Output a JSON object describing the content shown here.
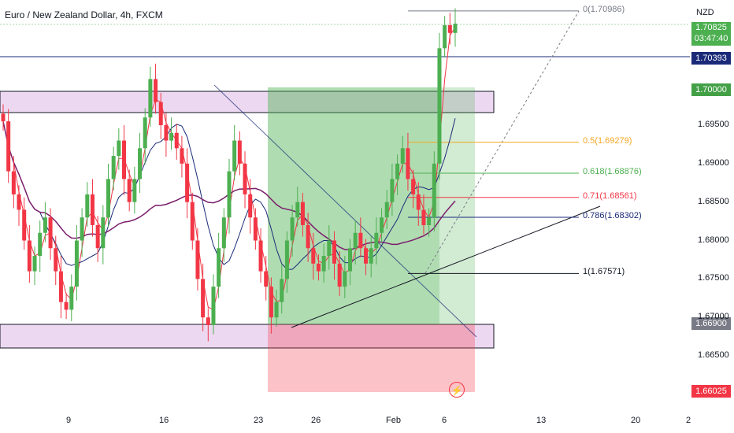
{
  "header": {
    "title": "Euro / New Zealand Dollar, 4h, FXCM",
    "currency": "NZD"
  },
  "price_tags": {
    "last_price": "1.70825",
    "countdown": "03:47:40",
    "level_line": "1.70393",
    "target": "1.70000",
    "entry": "1.66900",
    "stop": "1.66025"
  },
  "chart_data": {
    "type": "candlestick",
    "title": "Euro / New Zealand Dollar, 4h, FXCM",
    "y_axis_ticks": [
      "1.69500",
      "1.69000",
      "1.68500",
      "1.68000",
      "1.67500",
      "1.67000",
      "1.66500"
    ],
    "x_axis_ticks": [
      "9",
      "16",
      "23",
      "26",
      "Feb",
      "6",
      "13",
      "20",
      "2"
    ],
    "ylim": [
      1.6585,
      1.715
    ],
    "fib_levels": [
      {
        "label": "0(1.70986)",
        "value": 1.70986,
        "color": "#787b86"
      },
      {
        "label": "0.5(1.69279)",
        "value": 1.69279,
        "color": "#f5a623"
      },
      {
        "label": "0.618(1.68876)",
        "value": 1.68876,
        "color": "#4caf50"
      },
      {
        "label": "0.71(1.68561)",
        "value": 1.68561,
        "color": "#f23645"
      },
      {
        "label": "0.786(1.68302)",
        "value": 1.68302,
        "color": "#1a2a78"
      },
      {
        "label": "1(1.67571)",
        "value": 1.67571,
        "color": "#131722"
      }
    ],
    "zones": {
      "resistance": [
        1.6966,
        1.6995
      ],
      "support": [
        1.6662,
        1.6693
      ],
      "long_profit": [
        1.669,
        1.7
      ],
      "long_stop": [
        1.66025,
        1.669
      ]
    },
    "series": [
      {
        "type": "candles",
        "closes": [
          1.6955,
          1.689,
          1.686,
          1.684,
          1.68,
          1.676,
          1.678,
          1.681,
          1.683,
          1.679,
          1.676,
          1.672,
          1.671,
          1.674,
          1.68,
          1.683,
          1.686,
          1.682,
          1.679,
          1.683,
          1.688,
          1.691,
          1.693,
          1.688,
          1.685,
          1.688,
          1.692,
          1.696,
          1.701,
          1.698,
          1.695,
          1.693,
          1.694,
          1.692,
          1.69,
          1.685,
          1.68,
          1.675,
          1.67,
          1.669,
          1.674,
          1.679,
          1.683,
          1.689,
          1.693,
          1.69,
          1.686,
          1.683,
          1.68,
          1.676,
          1.674,
          1.67,
          1.672,
          1.675,
          1.68,
          1.683,
          1.685,
          1.682,
          1.679,
          1.677,
          1.676,
          1.678,
          1.68,
          1.677,
          1.674,
          1.676,
          1.679,
          1.681,
          1.679,
          1.677,
          1.679,
          1.681,
          1.683,
          1.685,
          1.688,
          1.69,
          1.692,
          1.688,
          1.686,
          1.684,
          1.682,
          1.683,
          1.69,
          1.705,
          1.708,
          1.707,
          1.7082
        ]
      },
      {
        "type": "ma",
        "name": "",
        "color": "#f23645"
      },
      {
        "type": "ma",
        "name": "",
        "color": "#1a2a78"
      },
      {
        "type": "ma",
        "name": "",
        "color": "#7b1e6b"
      }
    ]
  },
  "colors": {
    "up": "#4caf50",
    "down": "#f23645"
  },
  "icons": {
    "alert": "lightning-icon"
  }
}
